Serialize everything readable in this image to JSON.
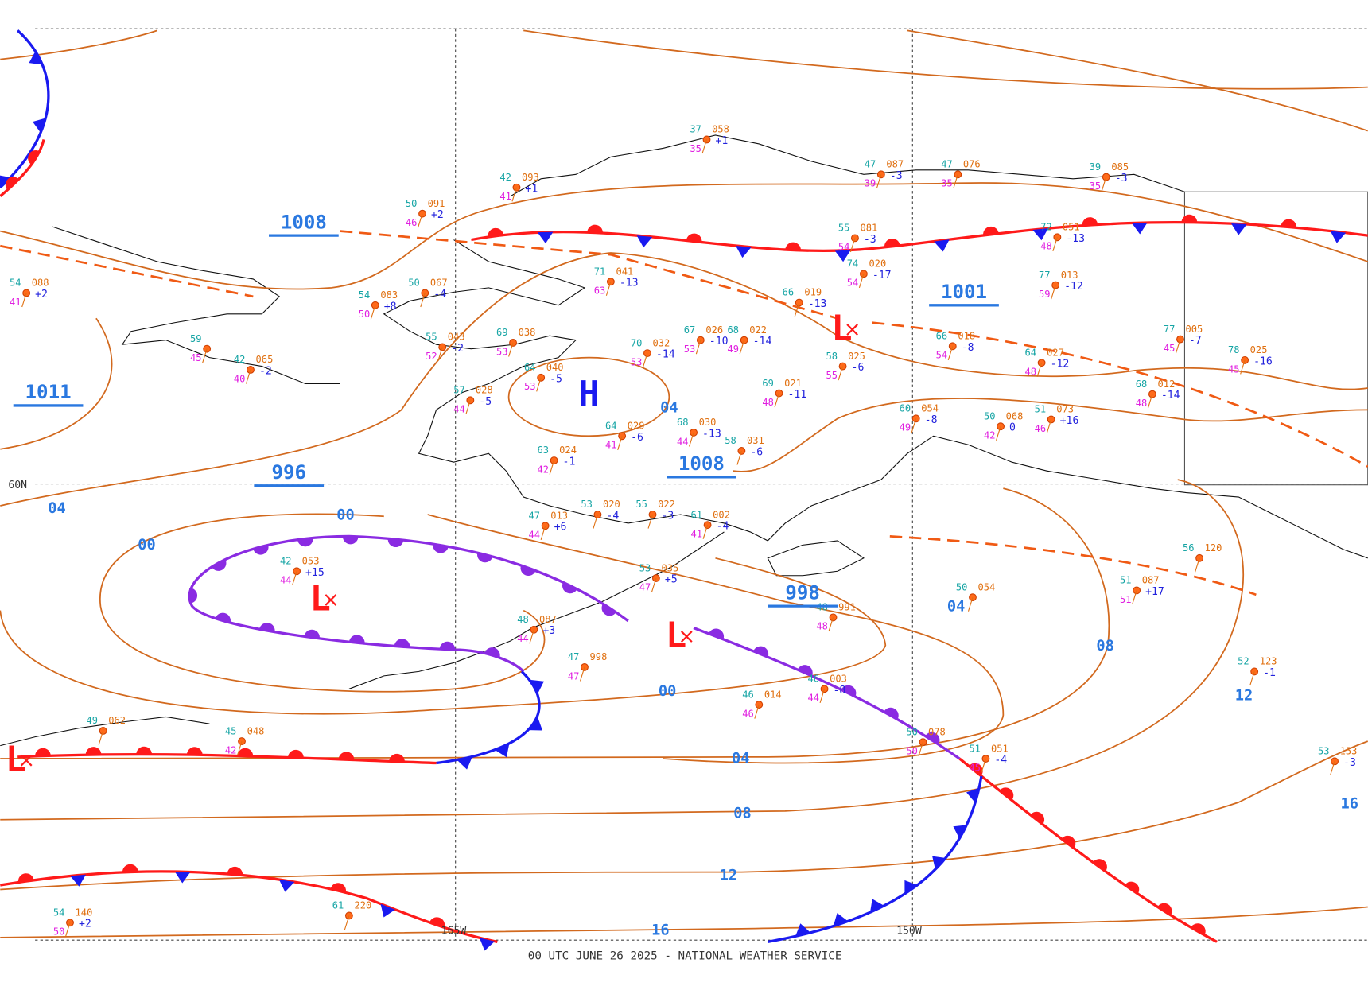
{
  "footer": "00 UTC JUNE 26 2025 - NATIONAL WEATHER SERVICE",
  "grid_labels": [
    "60N",
    "165W",
    "150W"
  ],
  "centers": [
    "H",
    "L",
    "L",
    "L",
    "L"
  ],
  "central_pressures": [
    "1008",
    "1011",
    "996",
    "1008",
    "998",
    "1001"
  ],
  "isobar_labels": [
    "04",
    "04",
    "00",
    "00",
    "04",
    "08",
    "00",
    "12",
    "04",
    "08",
    "12",
    "16",
    "16"
  ],
  "stations": [
    {
      "t": "42",
      "p": "093",
      "tend": "+1",
      "td": "41"
    },
    {
      "t": "50",
      "p": "091",
      "tend": "+2",
      "td": "46"
    },
    {
      "t": "54",
      "p": "088",
      "tend": "+2",
      "td": "41"
    },
    {
      "t": "59",
      "td": "45"
    },
    {
      "t": "42",
      "p": "065",
      "tend": "-2",
      "td": "40"
    },
    {
      "t": "54",
      "p": "083",
      "tend": "+8",
      "td": "50"
    },
    {
      "t": "50",
      "p": "067",
      "tend": "-4"
    },
    {
      "t": "55",
      "p": "043",
      "tend": "-2",
      "td": "52"
    },
    {
      "t": "69",
      "p": "038",
      "td": "53"
    },
    {
      "t": "64",
      "p": "040",
      "tend": "-5",
      "td": "53"
    },
    {
      "t": "57",
      "p": "028",
      "tend": "-5",
      "td": "44"
    },
    {
      "t": "71",
      "p": "041",
      "tend": "-13",
      "td": "63"
    },
    {
      "t": "70",
      "p": "032",
      "tend": "-14",
      "td": "53"
    },
    {
      "t": "67",
      "p": "026",
      "tend": "-10",
      "td": "53"
    },
    {
      "t": "68",
      "p": "022",
      "tend": "-14",
      "td": "49"
    },
    {
      "t": "66",
      "p": "019",
      "tend": "-13"
    },
    {
      "t": "55",
      "p": "081",
      "tend": "-3",
      "td": "54"
    },
    {
      "t": "74",
      "p": "020",
      "tend": "-17",
      "td": "54"
    },
    {
      "t": "58",
      "p": "025",
      "tend": "-6",
      "td": "55"
    },
    {
      "t": "47",
      "p": "087",
      "tend": "-3",
      "td": "39"
    },
    {
      "t": "47",
      "p": "076",
      "td": "35"
    },
    {
      "t": "39",
      "p": "085",
      "tend": "-3",
      "td": "35"
    },
    {
      "t": "77",
      "p": "013",
      "tend": "-12",
      "td": "59"
    },
    {
      "t": "72",
      "p": "051",
      "tend": "-13",
      "td": "48"
    },
    {
      "t": "66",
      "p": "018",
      "tend": "-8",
      "td": "54"
    },
    {
      "t": "64",
      "p": "027",
      "tend": "-12",
      "td": "48"
    },
    {
      "t": "77",
      "p": "005",
      "tend": "-7",
      "td": "45"
    },
    {
      "t": "78",
      "p": "025",
      "tend": "-16",
      "td": "45"
    },
    {
      "t": "68",
      "p": "012",
      "tend": "-14",
      "td": "48"
    },
    {
      "t": "37",
      "p": "058",
      "tend": "+1",
      "td": "35"
    },
    {
      "t": "60",
      "p": "054",
      "tend": "-8",
      "td": "49"
    },
    {
      "t": "50",
      "p": "068",
      "tend": "0",
      "td": "42"
    },
    {
      "t": "51",
      "p": "073",
      "tend": "+16",
      "td": "46"
    },
    {
      "t": "64",
      "p": "029",
      "tend": "-6",
      "td": "41"
    },
    {
      "t": "68",
      "p": "030",
      "tend": "-13",
      "td": "44"
    },
    {
      "t": "58",
      "p": "031",
      "tend": "-6"
    },
    {
      "t": "69",
      "p": "021",
      "tend": "-11",
      "td": "48"
    },
    {
      "t": "63",
      "p": "024",
      "tend": "-1",
      "td": "42"
    },
    {
      "t": "47",
      "p": "013",
      "tend": "+6",
      "td": "44"
    },
    {
      "t": "53",
      "p": "020",
      "tend": "-4"
    },
    {
      "t": "55",
      "p": "022",
      "tend": "-3"
    },
    {
      "t": "61",
      "p": "002",
      "tend": "-4",
      "td": "41"
    },
    {
      "t": "42",
      "p": "053",
      "tend": "+15",
      "td": "44"
    },
    {
      "t": "53",
      "p": "035",
      "tend": "+5",
      "td": "47"
    },
    {
      "t": "48",
      "p": "087",
      "tend": "+3",
      "td": "44"
    },
    {
      "t": "48",
      "p": "991",
      "td": "48"
    },
    {
      "t": "56",
      "p": "120"
    },
    {
      "t": "51",
      "p": "087",
      "tend": "+17",
      "td": "51"
    },
    {
      "t": "52",
      "p": "123",
      "tend": "-1"
    },
    {
      "t": "53",
      "p": "153",
      "tend": "-3"
    },
    {
      "t": "51",
      "p": "051",
      "tend": "-4",
      "td": "45"
    },
    {
      "t": "50",
      "p": "078",
      "td": "50"
    },
    {
      "t": "46",
      "p": "014",
      "td": "46"
    },
    {
      "t": "46",
      "p": "003",
      "tend": "-8",
      "td": "44"
    },
    {
      "t": "47",
      "p": "998",
      "td": "47"
    },
    {
      "t": "50",
      "p": "054"
    },
    {
      "t": "54",
      "p": "140",
      "tend": "+2",
      "td": "50"
    },
    {
      "t": "61",
      "p": "220"
    },
    {
      "t": "49",
      "p": "062"
    },
    {
      "t": "45",
      "p": "048",
      "td": "42"
    }
  ]
}
